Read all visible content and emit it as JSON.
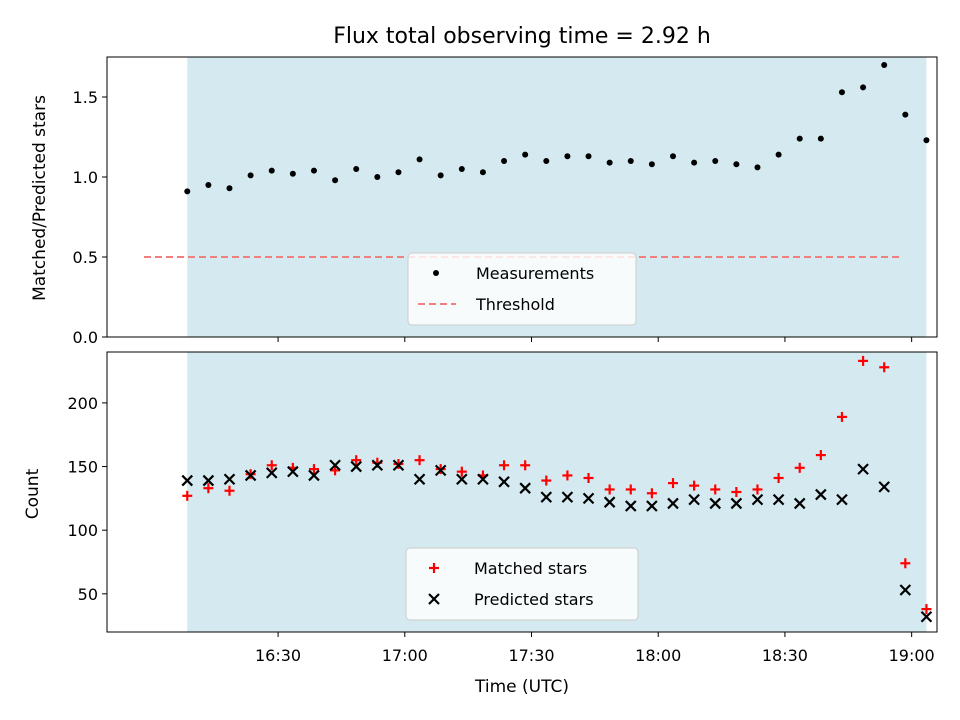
{
  "chart_data": {
    "title": "Flux total observing time = 2.92 h",
    "x_axis": {
      "label": "Time (UTC)",
      "unit": "minutes after 16:00 UTC",
      "range": [
        -10.5,
        186
      ],
      "ticks": [
        {
          "value": 30,
          "label": "16:30"
        },
        {
          "value": 60,
          "label": "17:00"
        },
        {
          "value": 90,
          "label": "17:30"
        },
        {
          "value": 120,
          "label": "18:00"
        },
        {
          "value": 150,
          "label": "18:30"
        },
        {
          "value": 180,
          "label": "19:00"
        }
      ]
    },
    "observing_span": {
      "start": 8.5,
      "end": 183.5,
      "color": "#d4eaf0"
    },
    "panels": [
      {
        "type": "scatter",
        "ylabel": "Matched/Predicted stars",
        "ylim": [
          0,
          1.75
        ],
        "yticks": [
          0.0,
          0.5,
          1.0,
          1.5
        ],
        "ytick_labels": [
          "0.0",
          "0.5",
          "1.0",
          "1.5"
        ],
        "series": [
          {
            "name": "Measurements",
            "marker": "dot",
            "color": "#000000",
            "x": [
              8.5,
              13.5,
              18.5,
              23.5,
              28.5,
              33.5,
              38.5,
              43.5,
              48.5,
              53.5,
              58.5,
              63.5,
              68.5,
              73.5,
              78.5,
              83.5,
              88.5,
              93.5,
              98.5,
              103.5,
              108.5,
              113.5,
              118.5,
              123.5,
              128.5,
              133.5,
              138.5,
              143.5,
              148.5,
              153.5,
              158.5,
              163.5,
              168.5,
              173.5,
              178.5,
              183.5
            ],
            "y": [
              0.91,
              0.95,
              0.93,
              1.01,
              1.04,
              1.02,
              1.04,
              0.98,
              1.05,
              1.0,
              1.03,
              1.11,
              1.01,
              1.05,
              1.03,
              1.1,
              1.14,
              1.1,
              1.13,
              1.13,
              1.09,
              1.1,
              1.08,
              1.13,
              1.09,
              1.1,
              1.08,
              1.06,
              1.14,
              1.24,
              1.24,
              1.53,
              1.56,
              1.7,
              1.39,
              1.23
            ]
          }
        ],
        "threshold": {
          "name": "Threshold",
          "value": 0.5,
          "color": "#f08080"
        },
        "legend": "lower center"
      },
      {
        "type": "scatter",
        "ylabel": "Count",
        "ylim": [
          20,
          240
        ],
        "yticks": [
          50,
          100,
          150,
          200
        ],
        "ytick_labels": [
          "50",
          "100",
          "150",
          "200"
        ],
        "series": [
          {
            "name": "Matched stars",
            "marker": "plus",
            "color": "#ff0000",
            "x": [
              8.5,
              13.5,
              18.5,
              23.5,
              28.5,
              33.5,
              38.5,
              43.5,
              48.5,
              53.5,
              58.5,
              63.5,
              68.5,
              73.5,
              78.5,
              83.5,
              88.5,
              93.5,
              98.5,
              103.5,
              108.5,
              113.5,
              118.5,
              123.5,
              128.5,
              133.5,
              138.5,
              143.5,
              148.5,
              153.5,
              158.5,
              163.5,
              168.5,
              173.5,
              178.5,
              183.5
            ],
            "y": [
              127,
              133,
              131,
              144,
              151,
              149,
              148,
              147,
              155,
              153,
              152,
              155,
              148,
              146,
              143,
              151,
              151,
              139,
              143,
              141,
              132,
              132,
              129,
              137,
              135,
              132,
              130,
              132,
              141,
              149,
              159,
              189,
              233,
              228,
              74,
              38
            ]
          },
          {
            "name": "Predicted stars",
            "marker": "x",
            "color": "#000000",
            "x": [
              8.5,
              13.5,
              18.5,
              23.5,
              28.5,
              33.5,
              38.5,
              43.5,
              48.5,
              53.5,
              58.5,
              63.5,
              68.5,
              73.5,
              78.5,
              83.5,
              88.5,
              93.5,
              98.5,
              103.5,
              108.5,
              113.5,
              118.5,
              123.5,
              128.5,
              133.5,
              138.5,
              143.5,
              148.5,
              153.5,
              158.5,
              163.5,
              168.5,
              173.5,
              178.5,
              183.5
            ],
            "y": [
              139,
              139,
              140,
              143,
              145,
              146,
              143,
              151,
              150,
              151,
              151,
              140,
              147,
              140,
              140,
              138,
              133,
              126,
              126,
              125,
              122,
              119,
              119,
              121,
              124,
              121,
              121,
              124,
              124,
              121,
              128,
              124,
              148,
              134,
              53,
              32
            ]
          }
        ],
        "legend": "lower center"
      }
    ]
  }
}
